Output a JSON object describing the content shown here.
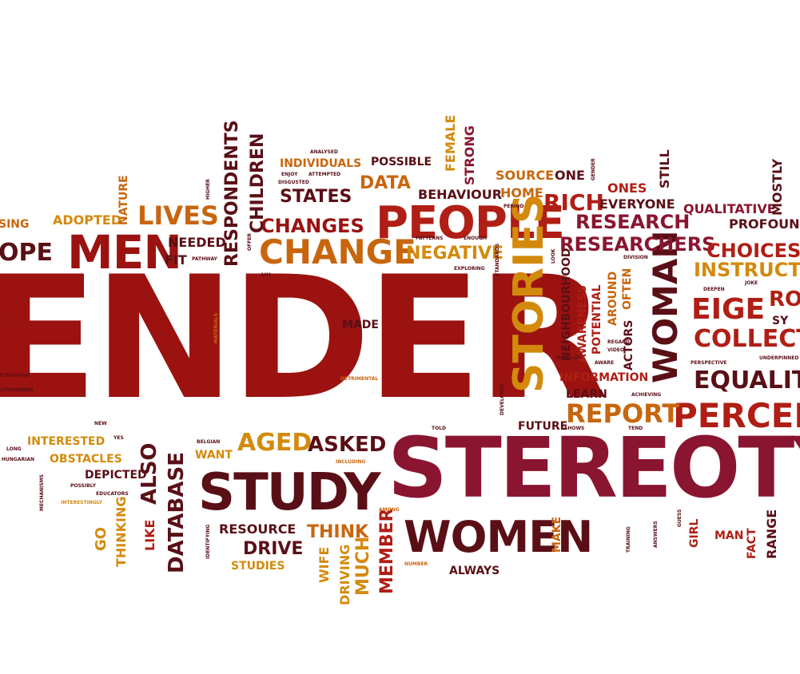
{
  "palette": {
    "dark_red": "#9b1210",
    "red": "#b01e15",
    "crimson": "#8a1530",
    "maroon": "#5a0f16",
    "brown": "#6b1a12",
    "orange": "#c8660e",
    "amber": "#d38a0c",
    "gold": "#c99212"
  },
  "words": [
    {
      "text": "ENDER",
      "color": "dark_red"
    },
    {
      "text": "STEREOTYP",
      "color": "crimson"
    },
    {
      "text": "PEOPLE",
      "color": "red"
    },
    {
      "text": "MEN",
      "color": "dark_red"
    },
    {
      "text": "CHANGE",
      "color": "orange"
    },
    {
      "text": "STUDY",
      "color": "maroon"
    },
    {
      "text": "WOMEN",
      "color": "maroon"
    },
    {
      "text": "STORIES",
      "color": "amber"
    },
    {
      "text": "WOMAN",
      "color": "maroon"
    },
    {
      "text": "PERCEP",
      "color": "red"
    },
    {
      "text": "EIGE",
      "color": "red"
    },
    {
      "text": "COLLECT",
      "color": "red"
    },
    {
      "text": "EQUALIT",
      "color": "maroon"
    },
    {
      "text": "REPORT",
      "color": "orange"
    },
    {
      "text": "LIVES",
      "color": "orange"
    },
    {
      "text": "CHANGES",
      "color": "dark_red"
    },
    {
      "text": "RICH",
      "color": "red"
    },
    {
      "text": "RESEARCH",
      "color": "crimson"
    },
    {
      "text": "RESEARCHERS",
      "color": "crimson"
    },
    {
      "text": "CHOICES",
      "color": "red"
    },
    {
      "text": "INSTRUCTO",
      "color": "amber"
    },
    {
      "text": "AGED",
      "color": "amber"
    },
    {
      "text": "ASKED",
      "color": "maroon"
    },
    {
      "text": "NEGATIVE",
      "color": "amber"
    },
    {
      "text": "DATA",
      "color": "orange"
    },
    {
      "text": "STATES",
      "color": "maroon"
    },
    {
      "text": "OPE",
      "color": "maroon"
    },
    {
      "text": "RESPONDENTS",
      "color": "maroon"
    },
    {
      "text": "CHILDREN",
      "color": "maroon"
    },
    {
      "text": "INDIVIDUALS",
      "color": "orange"
    },
    {
      "text": "POSSIBLE",
      "color": "maroon"
    },
    {
      "text": "FEMALE",
      "color": "amber"
    },
    {
      "text": "STRONG",
      "color": "crimson"
    },
    {
      "text": "SOURCE",
      "color": "orange"
    },
    {
      "text": "ONE",
      "color": "maroon"
    },
    {
      "text": "BEHAVIOUR",
      "color": "maroon"
    },
    {
      "text": "HOME",
      "color": "orange"
    },
    {
      "text": "ONES",
      "color": "red"
    },
    {
      "text": "EVERYONE",
      "color": "maroon"
    },
    {
      "text": "STILL",
      "color": "maroon"
    },
    {
      "text": "QUALITATIVE",
      "color": "crimson"
    },
    {
      "text": "PROFOUND",
      "color": "maroon"
    },
    {
      "text": "MOSTLY",
      "color": "maroon"
    },
    {
      "text": "ADOPTED",
      "color": "amber"
    },
    {
      "text": "NATURE",
      "color": "orange"
    },
    {
      "text": "NEEDED",
      "color": "maroon"
    },
    {
      "text": "FIT",
      "color": "maroon"
    },
    {
      "text": "ALSO",
      "color": "maroon"
    },
    {
      "text": "DATABASE",
      "color": "maroon"
    },
    {
      "text": "LIKE",
      "color": "red"
    },
    {
      "text": "THINKING",
      "color": "amber"
    },
    {
      "text": "GO",
      "color": "amber"
    },
    {
      "text": "INTERESTED",
      "color": "amber"
    },
    {
      "text": "OBSTACLES",
      "color": "amber"
    },
    {
      "text": "DEPICTED",
      "color": "maroon"
    },
    {
      "text": "WANT",
      "color": "amber"
    },
    {
      "text": "RESOURCE",
      "color": "maroon"
    },
    {
      "text": "DRIVE",
      "color": "maroon"
    },
    {
      "text": "STUDIES",
      "color": "amber"
    },
    {
      "text": "THINK",
      "color": "orange"
    },
    {
      "text": "MUCH",
      "color": "amber"
    },
    {
      "text": "MEMBER",
      "color": "red"
    },
    {
      "text": "DRIVING",
      "color": "amber"
    },
    {
      "text": "WIFE",
      "color": "amber"
    },
    {
      "text": "ALWAYS",
      "color": "maroon"
    },
    {
      "text": "MAKE",
      "color": "orange"
    },
    {
      "text": "MADE",
      "color": "maroon"
    },
    {
      "text": "FUTURE",
      "color": "maroon"
    },
    {
      "text": "LEARN",
      "color": "maroon"
    },
    {
      "text": "INFORMATION",
      "color": "red"
    },
    {
      "text": "NEIGHBOURHOOD",
      "color": "maroon"
    },
    {
      "text": "AWARENESS",
      "color": "red"
    },
    {
      "text": "POTENTIAL",
      "color": "red"
    },
    {
      "text": "AROUND",
      "color": "orange"
    },
    {
      "text": "OFTEN",
      "color": "orange"
    },
    {
      "text": "ACTORS",
      "color": "maroon"
    },
    {
      "text": "GIRL",
      "color": "red"
    },
    {
      "text": "MAN",
      "color": "red"
    },
    {
      "text": "FACT",
      "color": "red"
    },
    {
      "text": "RANGE",
      "color": "maroon"
    },
    {
      "text": "RO",
      "color": "red"
    },
    {
      "text": "SY",
      "color": "maroon"
    },
    {
      "text": "SING",
      "color": "orange"
    },
    {
      "text": "USE",
      "color": "dark_red"
    },
    {
      "text": "PATTERNS",
      "color": "maroon"
    },
    {
      "text": "ENOUGH",
      "color": "maroon"
    },
    {
      "text": "EXPLORING",
      "color": "maroon"
    },
    {
      "text": "STANDARDS",
      "color": "maroon"
    },
    {
      "text": "DEVELOPED",
      "color": "maroon"
    },
    {
      "text": "DETRIMENTAL",
      "color": "orange"
    },
    {
      "text": "MATERIALS",
      "color": "orange"
    },
    {
      "text": "INCLUDING",
      "color": "orange"
    },
    {
      "text": "AMONG",
      "color": "orange"
    },
    {
      "text": "NUMBER",
      "color": "orange"
    },
    {
      "text": "BELGIAN",
      "color": "maroon"
    },
    {
      "text": "EDUCATORS",
      "color": "maroon"
    },
    {
      "text": "POSSIBLY",
      "color": "maroon"
    },
    {
      "text": "INTERESTINGLY",
      "color": "amber"
    },
    {
      "text": "MECHANISMS",
      "color": "maroon"
    },
    {
      "text": "HUNGARIAN",
      "color": "maroon"
    },
    {
      "text": "LONG",
      "color": "maroon"
    },
    {
      "text": "NEW",
      "color": "maroon"
    },
    {
      "text": "YES",
      "color": "maroon"
    },
    {
      "text": "TOLD",
      "color": "maroon"
    },
    {
      "text": "SHOWS",
      "color": "maroon"
    },
    {
      "text": "TEND",
      "color": "maroon"
    },
    {
      "text": "ACHIEVING",
      "color": "maroon"
    },
    {
      "text": "AWARE",
      "color": "maroon"
    },
    {
      "text": "VIDEO",
      "color": "maroon"
    },
    {
      "text": "REGARD",
      "color": "maroon"
    },
    {
      "text": "DIVISION",
      "color": "maroon"
    },
    {
      "text": "PERSPECTIVE",
      "color": "maroon"
    },
    {
      "text": "UNDERPINNED",
      "color": "maroon"
    },
    {
      "text": "DEEPEN",
      "color": "maroon"
    },
    {
      "text": "JOKE",
      "color": "maroon"
    },
    {
      "text": "ANALYSED",
      "color": "maroon"
    },
    {
      "text": "ENJOY",
      "color": "maroon"
    },
    {
      "text": "ATTEMPTED",
      "color": "maroon"
    },
    {
      "text": "DISGUSTED",
      "color": "maroon"
    },
    {
      "text": "HIGHER",
      "color": "maroon"
    },
    {
      "text": "LITHUANIAN",
      "color": "maroon"
    },
    {
      "text": "PERIOD",
      "color": "maroon"
    },
    {
      "text": "AIM",
      "color": "maroon"
    },
    {
      "text": "OFFER",
      "color": "maroon"
    },
    {
      "text": "ETHIOPIAN",
      "color": "maroon"
    },
    {
      "text": "TRAINING",
      "color": "maroon"
    },
    {
      "text": "ANSWERS",
      "color": "maroon"
    },
    {
      "text": "GUESS",
      "color": "maroon"
    },
    {
      "text": "IDENTIFYING",
      "color": "maroon"
    },
    {
      "text": "PATHWAY",
      "color": "maroon"
    },
    {
      "text": "MAKE-UP",
      "color": "maroon"
    },
    {
      "text": "LOOK",
      "color": "maroon"
    },
    {
      "text": "GENDER",
      "color": "maroon"
    }
  ]
}
